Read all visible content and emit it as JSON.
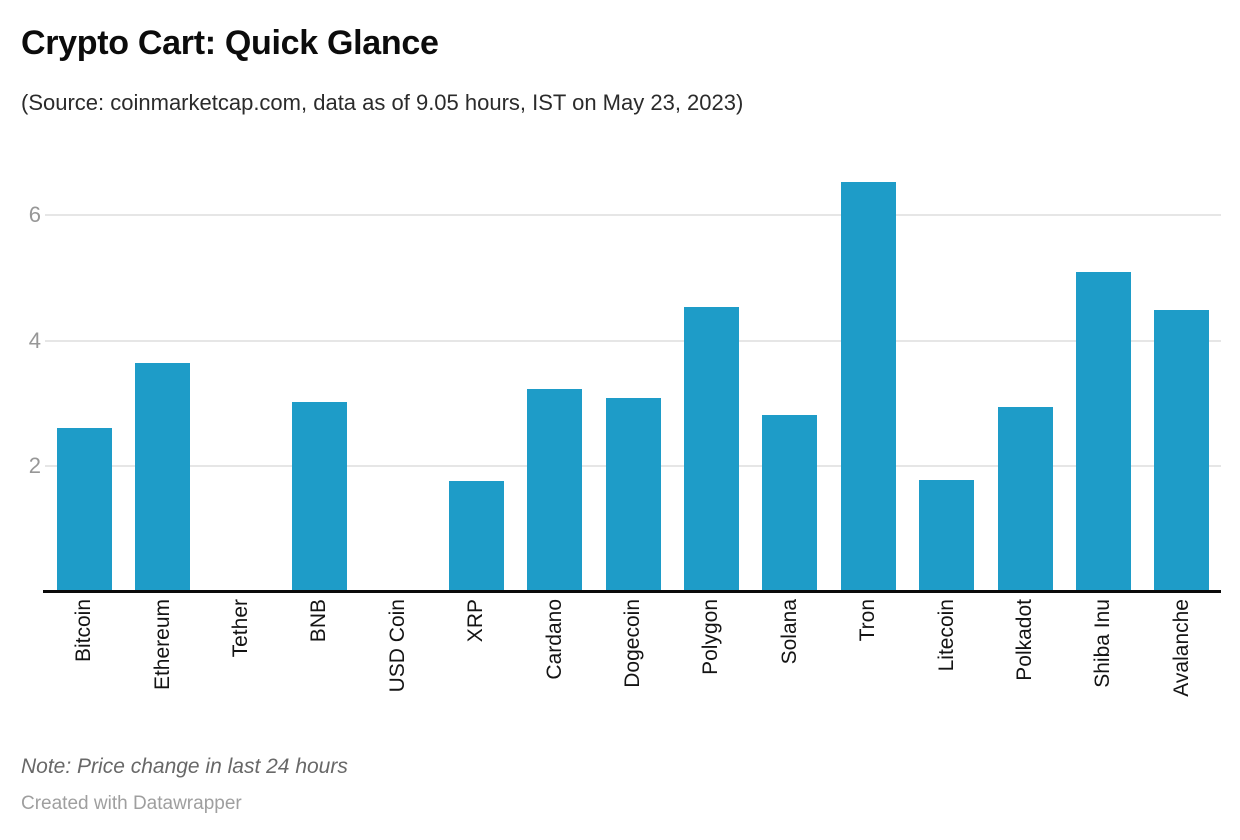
{
  "header": {
    "title": "Crypto Cart: Quick Glance",
    "subtitle": "(Source: coinmarketcap.com, data as of 9.05 hours, IST on May 23, 2023)"
  },
  "footer": {
    "note": "Note: Price change in last 24 hours",
    "attribution": "Created with Datawrapper"
  },
  "colors": {
    "bar": "#1e9cc8",
    "grid": "#e6e6e6",
    "axis": "#0a0a0a",
    "tick_label": "#979797",
    "category_label": "#141414"
  },
  "chart_data": {
    "type": "bar",
    "title": "Crypto Cart: Quick Glance",
    "subtitle": "(Source: coinmarketcap.com, data as of 9.05 hours, IST on May 23, 2023)",
    "note": "Note: Price change in last 24 hours",
    "categories": [
      "Bitcoin",
      "Ethereum",
      "Tether",
      "BNB",
      "USD Coin",
      "XRP",
      "Cardano",
      "Dogecoin",
      "Polygon",
      "Solana",
      "Tron",
      "Litecoin",
      "Polkadot",
      "Shiba Inu",
      "Avalanche"
    ],
    "values": [
      2.61,
      3.64,
      0,
      3.02,
      0,
      1.77,
      3.23,
      3.09,
      4.53,
      2.82,
      6.52,
      1.78,
      2.95,
      5.09,
      4.49
    ],
    "xlabel": "",
    "ylabel": "",
    "yticks": [
      2,
      4,
      6
    ],
    "ylim": [
      0,
      7
    ],
    "grid": true,
    "legend_position": "none",
    "bar_color": "#1e9cc8",
    "category_label_rotation": "vertical-bottom-to-top"
  }
}
